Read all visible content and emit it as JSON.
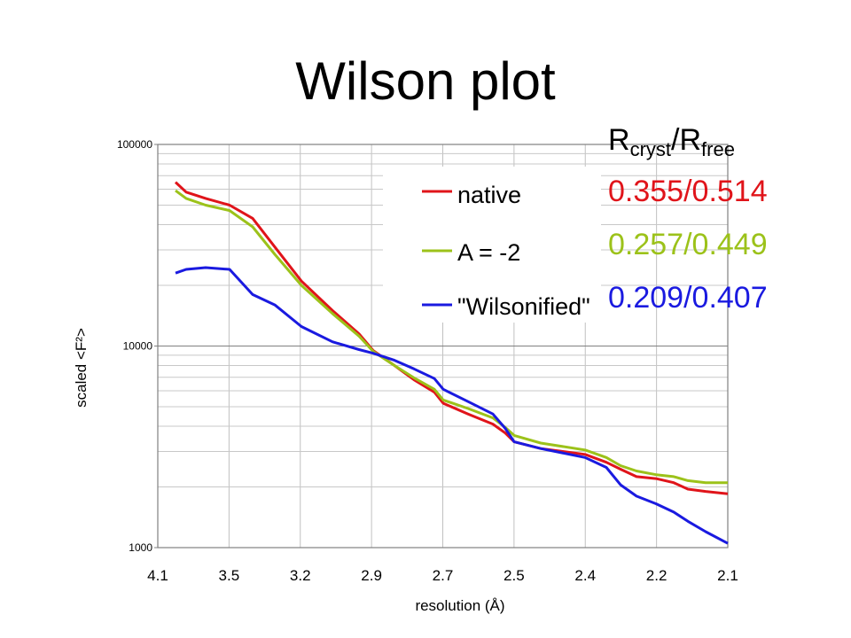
{
  "title": "Wilson plot",
  "r_header": {
    "r": "R",
    "cryst": "cryst",
    "slash": "/R",
    "free": "free"
  },
  "stats": [
    {
      "value": "0.355/0.514",
      "color": "#e0141a"
    },
    {
      "value": "0.257/0.449",
      "color": "#9cc21a"
    },
    {
      "value": "0.209/0.407",
      "color": "#1a1ae0"
    }
  ],
  "chart_data": {
    "type": "line",
    "title": "",
    "xlabel": "resolution (Å)",
    "ylabel": "scaled <F²>",
    "y_scale": "log",
    "ylim": [
      1000,
      100000
    ],
    "y_ticks": [
      "1000",
      "10000",
      "100000"
    ],
    "x_tick_labels": [
      "4.1",
      "3.5",
      "3.2",
      "2.9",
      "2.7",
      "2.5",
      "2.4",
      "2.2",
      "2.1"
    ],
    "legend_placement": "top-right",
    "grid": true,
    "series": [
      {
        "name": "native",
        "color": "#e0141a",
        "x": [
          "4.1",
          "3.9",
          "3.7",
          "3.5",
          "3.4",
          "3.3",
          "3.2",
          "3.1",
          "3.0",
          "2.9",
          "2.85",
          "2.8",
          "2.75",
          "2.7",
          "2.65",
          "2.6",
          "2.55",
          "2.5",
          "2.45",
          "2.4",
          "2.35",
          "2.3",
          "2.25",
          "2.2",
          "2.18",
          "2.15",
          "2.12",
          "2.1"
        ],
        "values": [
          65000,
          58000,
          54000,
          50000,
          43000,
          31000,
          21000,
          15000,
          11500,
          9500,
          8000,
          6800,
          5900,
          5200,
          4600,
          4100,
          3700,
          3350,
          3100,
          2900,
          2650,
          2450,
          2250,
          2200,
          2100,
          1950,
          1900,
          1850
        ]
      },
      {
        "name": "A = -2",
        "color": "#9cc21a",
        "x": [
          "4.1",
          "3.9",
          "3.7",
          "3.5",
          "3.4",
          "3.3",
          "3.2",
          "3.1",
          "3.0",
          "2.9",
          "2.85",
          "2.8",
          "2.75",
          "2.7",
          "2.65",
          "2.6",
          "2.55",
          "2.5",
          "2.45",
          "2.4",
          "2.35",
          "2.3",
          "2.25",
          "2.2",
          "2.18",
          "2.15",
          "2.12",
          "2.1"
        ],
        "values": [
          59000,
          54000,
          50000,
          47000,
          39000,
          28500,
          20000,
          14500,
          11200,
          9400,
          8000,
          6950,
          6100,
          5400,
          4900,
          4400,
          3950,
          3600,
          3300,
          3050,
          2800,
          2550,
          2400,
          2300,
          2250,
          2150,
          2100,
          2100
        ]
      },
      {
        "name": "\"Wilsonified\"",
        "color": "#1a1ae0",
        "x": [
          "4.1",
          "3.9",
          "3.7",
          "3.5",
          "3.4",
          "3.3",
          "3.2",
          "3.1",
          "3.0",
          "2.9",
          "2.85",
          "2.8",
          "2.75",
          "2.7",
          "2.65",
          "2.6",
          "2.55",
          "2.5",
          "2.45",
          "2.4",
          "2.35",
          "2.3",
          "2.25",
          "2.2",
          "2.18",
          "2.15",
          "2.12",
          "2.1"
        ],
        "values": [
          23000,
          24000,
          24500,
          24000,
          18000,
          16000,
          12500,
          10500,
          9600,
          9200,
          8500,
          7700,
          6900,
          6100,
          5300,
          4600,
          3900,
          3350,
          3100,
          2800,
          2500,
          2050,
          1800,
          1650,
          1500,
          1350,
          1200,
          1050
        ]
      }
    ]
  }
}
